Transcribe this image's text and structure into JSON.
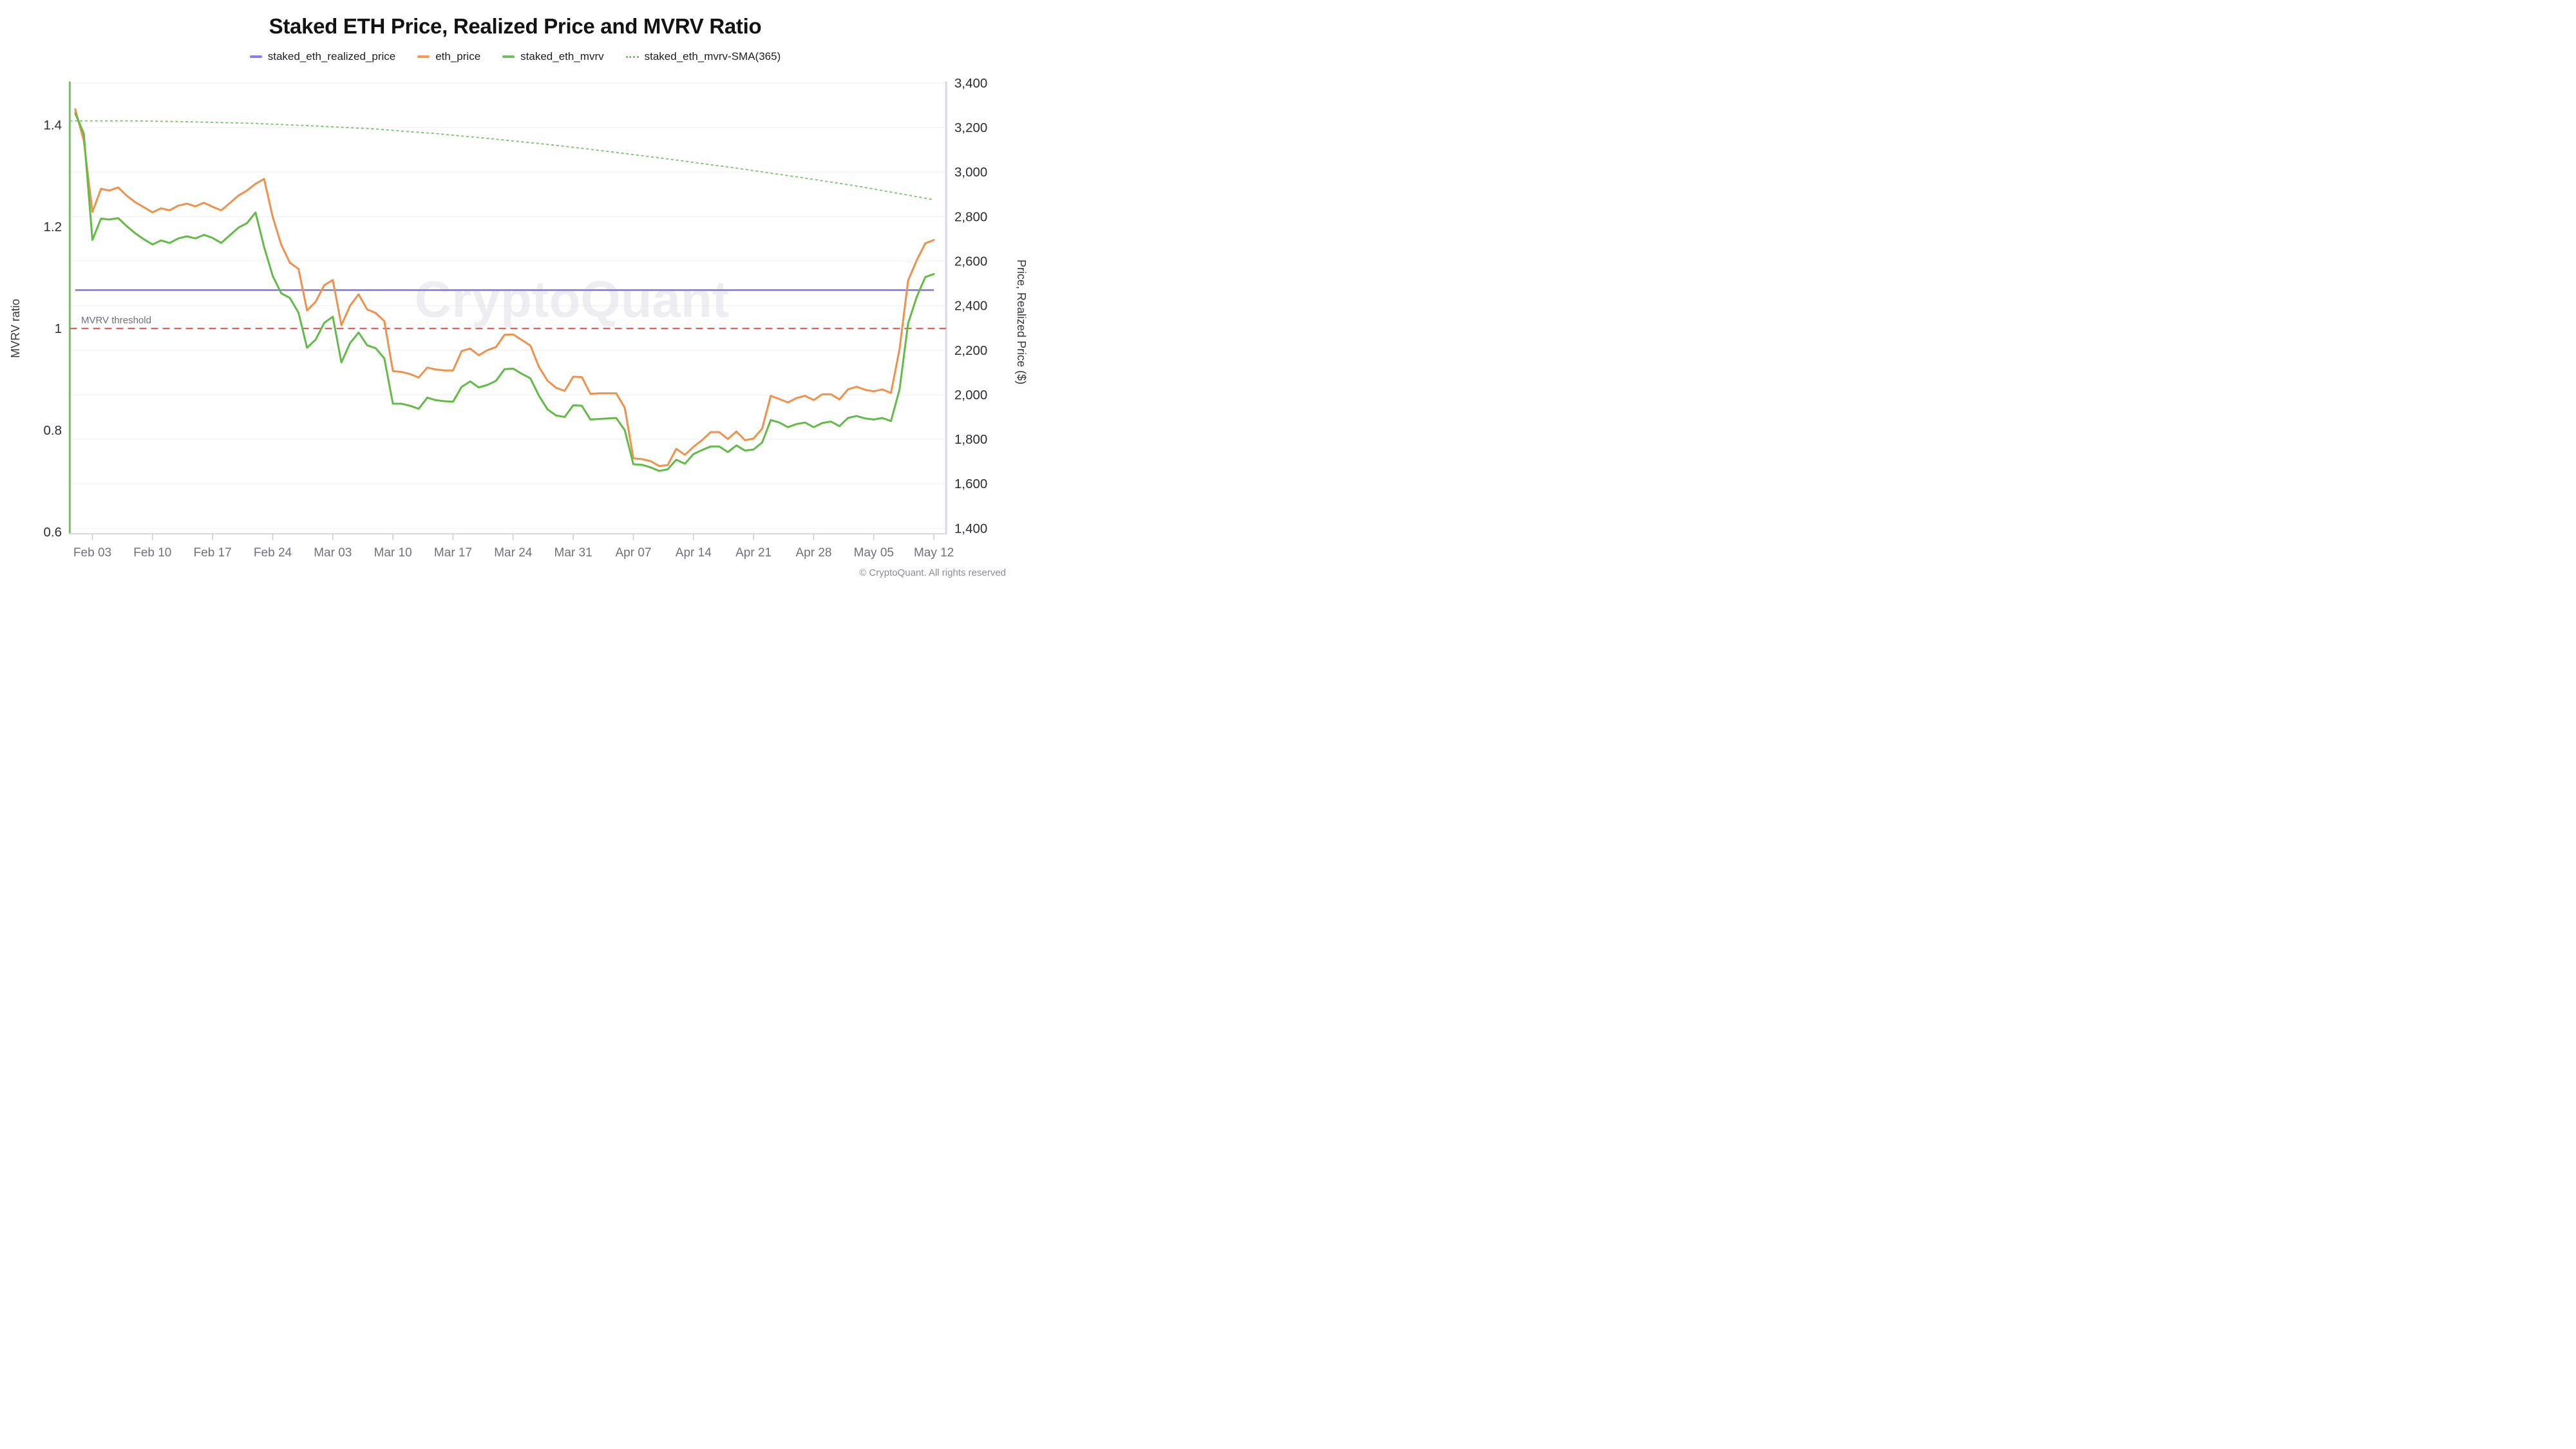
{
  "title": "Staked ETH Price, Realized Price and MVRV Ratio",
  "watermark": "CryptoQuant",
  "copyright": "© CryptoQuant. All rights reserved",
  "threshold_label": "MVRV threshold",
  "colors": {
    "eth_price": "#f0914b",
    "staked_eth_realized_price": "#8477f0",
    "staked_eth_mvrv": "#62bb46",
    "sma": "#7cc96b",
    "threshold": "#e2615e",
    "left_axis_bar": "#72c35c",
    "right_axis_bar": "#dcdce6",
    "bottom_axis": "#d8d8e0",
    "gridline": "#f2f2f6",
    "x_tick_label": "#70707b",
    "y_tick_label": "#2d2d34",
    "axis_title": "#34343c",
    "watermark_color": "#dfdfe8",
    "threshold_label_color": "#6e6e79",
    "copyright_color": "#8c8c96"
  },
  "legend": [
    {
      "label": "staked_eth_realized_price",
      "color": "#8b7cf2",
      "style": "solid"
    },
    {
      "label": "eth_price",
      "color": "#f29a57",
      "style": "solid"
    },
    {
      "label": "staked_eth_mvrv",
      "color": "#6fbf5e",
      "style": "solid"
    },
    {
      "label": "staked_eth_mvrv-SMA(365)",
      "color": "#7cc96b",
      "style": "dotted"
    }
  ],
  "axes": {
    "left": {
      "title": "MVRV ratio",
      "tick_labels": [
        "1.4",
        "1.2",
        "1",
        "0.8",
        "0.6"
      ],
      "tick_values": [
        1.4,
        1.2,
        1.0,
        0.8,
        0.6
      ]
    },
    "right": {
      "title": "Price, Realized Price ($)",
      "tick_labels": [
        "3,400",
        "3,200",
        "3,000",
        "2,800",
        "2,600",
        "2,400",
        "2,200",
        "2,000",
        "1,800",
        "1,600",
        "1,400"
      ],
      "tick_values": [
        3400,
        3200,
        3000,
        2800,
        2600,
        2400,
        2200,
        2000,
        1800,
        1600,
        1400
      ]
    },
    "x": {
      "tick_labels": [
        "Feb 03",
        "Feb 10",
        "Feb 17",
        "Feb 24",
        "Mar 03",
        "Mar 10",
        "Mar 17",
        "Mar 24",
        "Mar 31",
        "Apr 07",
        "Apr 14",
        "Apr 21",
        "Apr 28",
        "May 05",
        "May 12"
      ],
      "tick_day_index": [
        2,
        9,
        16,
        23,
        30,
        37,
        44,
        51,
        58,
        65,
        72,
        79,
        86,
        93,
        100
      ]
    }
  },
  "chart_data": {
    "type": "line",
    "title": "Staked ETH Price, Realized Price and MVRV Ratio",
    "legend_position": "top",
    "grid": true,
    "y_left_label": "MVRV ratio",
    "y_right_label": "Price, Realized Price ($)",
    "y_left_range": [
      0.597,
      1.486
    ],
    "y_right_range": [
      1376,
      3407
    ],
    "x_dates": [
      "Feb 01",
      "Feb 02",
      "Feb 03",
      "Feb 04",
      "Feb 05",
      "Feb 06",
      "Feb 07",
      "Feb 08",
      "Feb 09",
      "Feb 10",
      "Feb 11",
      "Feb 12",
      "Feb 13",
      "Feb 14",
      "Feb 15",
      "Feb 16",
      "Feb 17",
      "Feb 18",
      "Feb 19",
      "Feb 20",
      "Feb 21",
      "Feb 22",
      "Feb 23",
      "Feb 24",
      "Feb 25",
      "Feb 26",
      "Feb 27",
      "Feb 28",
      "Mar 01",
      "Mar 02",
      "Mar 03",
      "Mar 04",
      "Mar 05",
      "Mar 06",
      "Mar 07",
      "Mar 08",
      "Mar 09",
      "Mar 10",
      "Mar 11",
      "Mar 12",
      "Mar 13",
      "Mar 14",
      "Mar 15",
      "Mar 16",
      "Mar 17",
      "Mar 18",
      "Mar 19",
      "Mar 20",
      "Mar 21",
      "Mar 22",
      "Mar 23",
      "Mar 24",
      "Mar 25",
      "Mar 26",
      "Mar 27",
      "Mar 28",
      "Mar 29",
      "Mar 30",
      "Mar 31",
      "Apr 01",
      "Apr 02",
      "Apr 03",
      "Apr 04",
      "Apr 05",
      "Apr 06",
      "Apr 07",
      "Apr 08",
      "Apr 09",
      "Apr 10",
      "Apr 11",
      "Apr 12",
      "Apr 13",
      "Apr 14",
      "Apr 15",
      "Apr 16",
      "Apr 17",
      "Apr 18",
      "Apr 19",
      "Apr 20",
      "Apr 21",
      "Apr 22",
      "Apr 23",
      "Apr 24",
      "Apr 25",
      "Apr 26",
      "Apr 27",
      "Apr 28",
      "Apr 29",
      "Apr 30",
      "May 01",
      "May 02",
      "May 03",
      "May 04",
      "May 05",
      "May 06",
      "May 07",
      "May 08",
      "May 09",
      "May 10",
      "May 11",
      "May 12"
    ],
    "series": [
      {
        "name": "eth_price",
        "axis": "right",
        "color": "#f0914b",
        "style": "solid",
        "values": [
          3282,
          3141,
          2821,
          2924,
          2917,
          2931,
          2894,
          2864,
          2842,
          2819,
          2837,
          2828,
          2849,
          2858,
          2846,
          2862,
          2844,
          2828,
          2860,
          2894,
          2917,
          2947,
          2969,
          2798,
          2673,
          2593,
          2565,
          2378,
          2417,
          2492,
          2515,
          2312,
          2399,
          2451,
          2383,
          2367,
          2330,
          2106,
          2102,
          2093,
          2077,
          2122,
          2113,
          2109,
          2109,
          2196,
          2207,
          2177,
          2200,
          2214,
          2269,
          2271,
          2246,
          2221,
          2125,
          2063,
          2031,
          2017,
          2081,
          2079,
          2004,
          2006,
          2006,
          2006,
          1942,
          1714,
          1711,
          1702,
          1680,
          1684,
          1757,
          1730,
          1766,
          1796,
          1832,
          1832,
          1801,
          1835,
          1796,
          1803,
          1848,
          1995,
          1981,
          1965,
          1985,
          1995,
          1976,
          2002,
          2002,
          1979,
          2024,
          2036,
          2022,
          2015,
          2024,
          2008,
          2205,
          2513,
          2604,
          2680,
          2695
        ]
      },
      {
        "name": "staked_eth_realized_price",
        "axis": "right",
        "color": "#8477f0",
        "style": "solid",
        "constant": 2470
      },
      {
        "name": "staked_eth_mvrv",
        "axis": "left",
        "color": "#62bb46",
        "style": "solid",
        "values": [
          1.423,
          1.383,
          1.174,
          1.216,
          1.214,
          1.217,
          1.201,
          1.187,
          1.175,
          1.165,
          1.173,
          1.168,
          1.177,
          1.181,
          1.177,
          1.184,
          1.178,
          1.168,
          1.183,
          1.198,
          1.207,
          1.228,
          1.16,
          1.103,
          1.069,
          1.06,
          1.031,
          0.962,
          0.978,
          1.011,
          1.023,
          0.933,
          0.971,
          0.992,
          0.967,
          0.961,
          0.941,
          0.852,
          0.852,
          0.848,
          0.842,
          0.864,
          0.859,
          0.857,
          0.856,
          0.885,
          0.896,
          0.884,
          0.889,
          0.897,
          0.92,
          0.921,
          0.911,
          0.902,
          0.868,
          0.841,
          0.829,
          0.826,
          0.849,
          0.848,
          0.821,
          0.822,
          0.823,
          0.824,
          0.8,
          0.733,
          0.732,
          0.727,
          0.72,
          0.723,
          0.742,
          0.734,
          0.753,
          0.761,
          0.768,
          0.768,
          0.757,
          0.77,
          0.76,
          0.762,
          0.776,
          0.82,
          0.815,
          0.806,
          0.812,
          0.815,
          0.806,
          0.814,
          0.817,
          0.808,
          0.824,
          0.828,
          0.823,
          0.821,
          0.824,
          0.818,
          0.88,
          1.01,
          1.062,
          1.101,
          1.107
        ]
      },
      {
        "name": "staked_eth_mvrv-SMA(365)",
        "axis": "left",
        "color": "#7cc96b",
        "style": "dotted",
        "anchor_day_index": [
          0,
          7,
          14,
          21,
          28,
          35,
          42,
          49,
          56,
          63,
          70,
          77,
          84,
          91,
          98,
          100
        ],
        "anchor_values": [
          1.408,
          1.408,
          1.406,
          1.403,
          1.398,
          1.392,
          1.383,
          1.372,
          1.36,
          1.346,
          1.331,
          1.315,
          1.298,
          1.28,
          1.259,
          1.253
        ]
      },
      {
        "name": "MVRV threshold",
        "axis": "left",
        "color": "#e2615e",
        "style": "dashed",
        "constant": 1.0
      }
    ]
  }
}
